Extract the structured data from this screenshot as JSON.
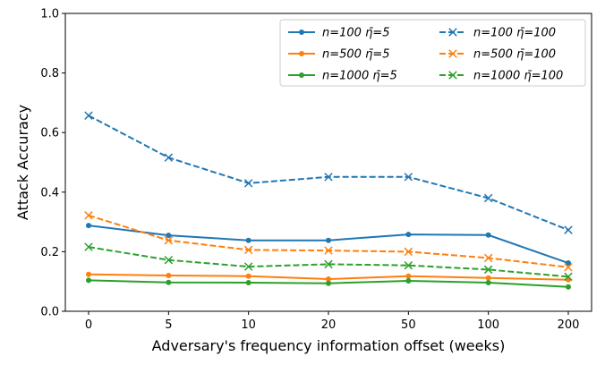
{
  "chart_data": {
    "type": "line",
    "xlabel": "Adversary's frequency information offset (weeks)",
    "ylabel": "Attack Accuracy",
    "categories": [
      "0",
      "5",
      "10",
      "20",
      "50",
      "100",
      "200"
    ],
    "ylim": [
      0.0,
      1.0
    ],
    "yticks": [
      "0.0",
      "0.2",
      "0.4",
      "0.6",
      "0.8",
      "1.0"
    ],
    "grid": false,
    "legend_position": "top-right",
    "series": [
      {
        "name": "n=100 η̄=5",
        "color": "#1f77b4",
        "style": "solid",
        "marker": "dot",
        "values": [
          0.288,
          0.255,
          0.238,
          0.238,
          0.258,
          0.256,
          0.162
        ]
      },
      {
        "name": "n=500 η̄=5",
        "color": "#ff7f0e",
        "style": "solid",
        "marker": "dot",
        "values": [
          0.124,
          0.12,
          0.118,
          0.108,
          0.118,
          0.112,
          0.106
        ]
      },
      {
        "name": "n=1000 η̄=5",
        "color": "#2ca02c",
        "style": "solid",
        "marker": "dot",
        "values": [
          0.104,
          0.097,
          0.096,
          0.094,
          0.102,
          0.096,
          0.082
        ]
      },
      {
        "name": "n=100 η̄=100",
        "color": "#1f77b4",
        "style": "dashed",
        "marker": "x",
        "values": [
          0.657,
          0.516,
          0.43,
          0.451,
          0.451,
          0.38,
          0.273
        ]
      },
      {
        "name": "n=500 η̄=100",
        "color": "#ff7f0e",
        "style": "dashed",
        "marker": "x",
        "values": [
          0.322,
          0.238,
          0.206,
          0.204,
          0.2,
          0.179,
          0.148
        ]
      },
      {
        "name": "n=1000 η̄=100",
        "color": "#2ca02c",
        "style": "dashed",
        "marker": "x",
        "values": [
          0.216,
          0.172,
          0.15,
          0.158,
          0.154,
          0.14,
          0.116
        ]
      }
    ]
  }
}
